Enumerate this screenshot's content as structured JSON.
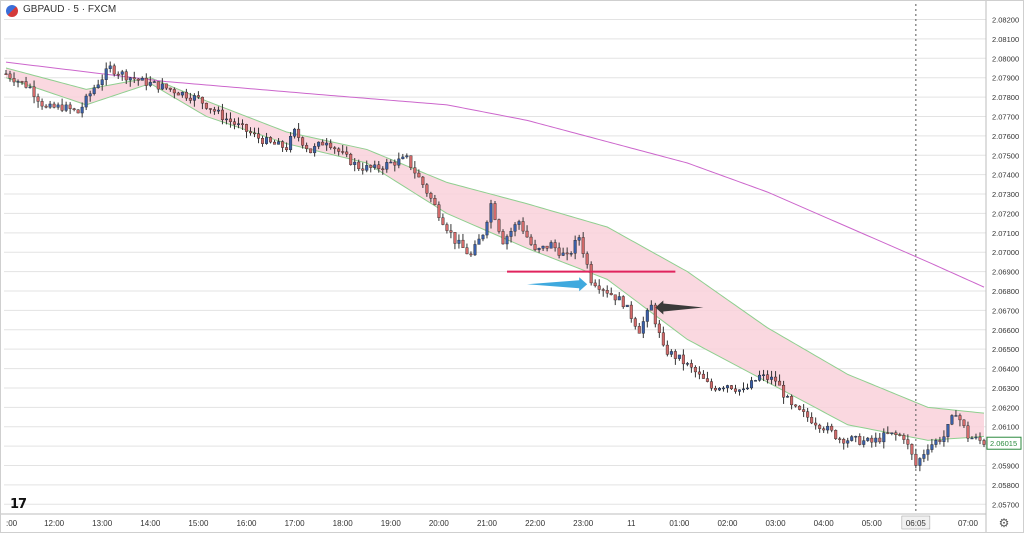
{
  "header": {
    "symbol": "GBPAUD · 5 · FXCM",
    "symbol_icon": "pound-aud-flag-icon"
  },
  "branding": {
    "logo_text": "17",
    "logo_icon": "tradingview-logo-icon"
  },
  "settings_icon": "gear-icon",
  "colors": {
    "background": "#ffffff",
    "grid": "#e3e3e3",
    "candle_up": "#3a5fa8",
    "candle_down": "#d26a6a",
    "wick": "#333333",
    "band_fill": "#f9d1db",
    "band_line": "#8fcf8f",
    "long_ma": "#cc66cc",
    "level_line": "#e0245e",
    "blue_arrow": "#3fa9de",
    "black_arrow": "#3a3a3a",
    "price_label": "#2b8a3e"
  },
  "chart_data": {
    "type": "candlestick",
    "y_axis": {
      "ylim": [
        2.0565,
        2.0828
      ],
      "ticks": [
        "2.08200",
        "2.08100",
        "2.08000",
        "2.07900",
        "2.07800",
        "2.07700",
        "2.07600",
        "2.07500",
        "2.07400",
        "2.07300",
        "2.07200",
        "2.07100",
        "2.07000",
        "2.06900",
        "2.06800",
        "2.06700",
        "2.06600",
        "2.06500",
        "2.06400",
        "2.06300",
        "2.06200",
        "2.06100",
        "2.06000",
        "2.05900",
        "2.05800",
        "2.05700"
      ],
      "tick_values": [
        2.082,
        2.081,
        2.08,
        2.079,
        2.078,
        2.077,
        2.076,
        2.075,
        2.074,
        2.073,
        2.072,
        2.071,
        2.07,
        2.069,
        2.068,
        2.067,
        2.066,
        2.065,
        2.064,
        2.063,
        2.062,
        2.061,
        2.06,
        2.059,
        2.058,
        2.057
      ],
      "current_price_label": "2.06015",
      "current_price": 2.06015
    },
    "x_axis": {
      "labels": [
        ":00",
        "12:00",
        "13:00",
        "14:00",
        "15:00",
        "16:00",
        "17:00",
        "18:00",
        "19:00",
        "20:00",
        "21:00",
        "22:00",
        "23:00",
        "11",
        "01:00",
        "02:00",
        "03:00",
        "04:00",
        "05:00",
        "06:05",
        "07:00"
      ],
      "label_bar_index": [
        0,
        12,
        24,
        36,
        48,
        60,
        72,
        84,
        96,
        108,
        120,
        132,
        144,
        156,
        168,
        180,
        192,
        204,
        216,
        227,
        240
      ],
      "crosshair_label": "06:05",
      "crosshair_bar_index": 227
    },
    "grid": true,
    "bar_count": 245,
    "price_path_anchors": [
      [
        0,
        2.0792
      ],
      [
        6,
        2.0785
      ],
      [
        10,
        2.0774
      ],
      [
        14,
        2.0775
      ],
      [
        18,
        2.0772
      ],
      [
        22,
        2.0785
      ],
      [
        26,
        2.0795
      ],
      [
        30,
        2.0791
      ],
      [
        34,
        2.0788
      ],
      [
        38,
        2.0786
      ],
      [
        44,
        2.0782
      ],
      [
        48,
        2.0779
      ],
      [
        54,
        2.077
      ],
      [
        58,
        2.0765
      ],
      [
        62,
        2.076
      ],
      [
        66,
        2.0756
      ],
      [
        70,
        2.0754
      ],
      [
        72,
        2.0762
      ],
      [
        76,
        2.0752
      ],
      [
        80,
        2.0758
      ],
      [
        84,
        2.075
      ],
      [
        88,
        2.0744
      ],
      [
        92,
        2.0743
      ],
      [
        96,
        2.0746
      ],
      [
        100,
        2.0748
      ],
      [
        104,
        2.0735
      ],
      [
        108,
        2.072
      ],
      [
        112,
        2.0706
      ],
      [
        116,
        2.0698
      ],
      [
        119,
        2.071
      ],
      [
        121,
        2.0725
      ],
      [
        124,
        2.0706
      ],
      [
        128,
        2.0716
      ],
      [
        132,
        2.07
      ],
      [
        136,
        2.0704
      ],
      [
        140,
        2.0697
      ],
      [
        143,
        2.0708
      ],
      [
        146,
        2.0686
      ],
      [
        150,
        2.068
      ],
      [
        154,
        2.0674
      ],
      [
        158,
        2.066
      ],
      [
        161,
        2.0672
      ],
      [
        164,
        2.065
      ],
      [
        168,
        2.0645
      ],
      [
        172,
        2.0638
      ],
      [
        176,
        2.063
      ],
      [
        180,
        2.0632
      ],
      [
        184,
        2.0628
      ],
      [
        188,
        2.0636
      ],
      [
        192,
        2.0634
      ],
      [
        196,
        2.062
      ],
      [
        200,
        2.0615
      ],
      [
        204,
        2.061
      ],
      [
        208,
        2.0604
      ],
      [
        212,
        2.0603
      ],
      [
        216,
        2.0602
      ],
      [
        220,
        2.0606
      ],
      [
        224,
        2.0605
      ],
      [
        227,
        2.059
      ],
      [
        230,
        2.06
      ],
      [
        234,
        2.0605
      ],
      [
        237,
        2.0618
      ],
      [
        240,
        2.0605
      ],
      [
        244,
        2.0602
      ]
    ],
    "band": {
      "upper_anchors": [
        [
          0,
          2.0795
        ],
        [
          20,
          2.0784
        ],
        [
          36,
          2.079
        ],
        [
          50,
          2.0778
        ],
        [
          70,
          2.0762
        ],
        [
          90,
          2.0753
        ],
        [
          110,
          2.0736
        ],
        [
          130,
          2.0725
        ],
        [
          150,
          2.0713
        ],
        [
          170,
          2.069
        ],
        [
          190,
          2.0661
        ],
        [
          210,
          2.0637
        ],
        [
          230,
          2.062
        ],
        [
          244,
          2.0617
        ]
      ],
      "lower_anchors": [
        [
          0,
          2.079
        ],
        [
          20,
          2.0776
        ],
        [
          36,
          2.0787
        ],
        [
          50,
          2.077
        ],
        [
          70,
          2.0756
        ],
        [
          90,
          2.0746
        ],
        [
          110,
          2.072
        ],
        [
          130,
          2.0702
        ],
        [
          150,
          2.0686
        ],
        [
          170,
          2.0655
        ],
        [
          190,
          2.0633
        ],
        [
          210,
          2.0611
        ],
        [
          230,
          2.0603
        ],
        [
          244,
          2.0605
        ]
      ]
    },
    "long_ma_anchors": [
      [
        0,
        2.0798
      ],
      [
        40,
        2.0788
      ],
      [
        80,
        2.0781
      ],
      [
        110,
        2.0776
      ],
      [
        130,
        2.0768
      ],
      [
        150,
        2.0757
      ],
      [
        170,
        2.0746
      ],
      [
        190,
        2.0731
      ],
      [
        210,
        2.0713
      ],
      [
        230,
        2.0695
      ],
      [
        244,
        2.0682
      ]
    ],
    "annotations": {
      "level_line": {
        "price": 2.069,
        "from_bar": 125,
        "to_bar": 167
      },
      "blue_arrow": {
        "price": 2.06835,
        "from_bar": 130,
        "to_bar": 145
      },
      "black_arrow": {
        "price": 2.06715,
        "from_bar": 174,
        "to_bar": 162
      }
    }
  }
}
